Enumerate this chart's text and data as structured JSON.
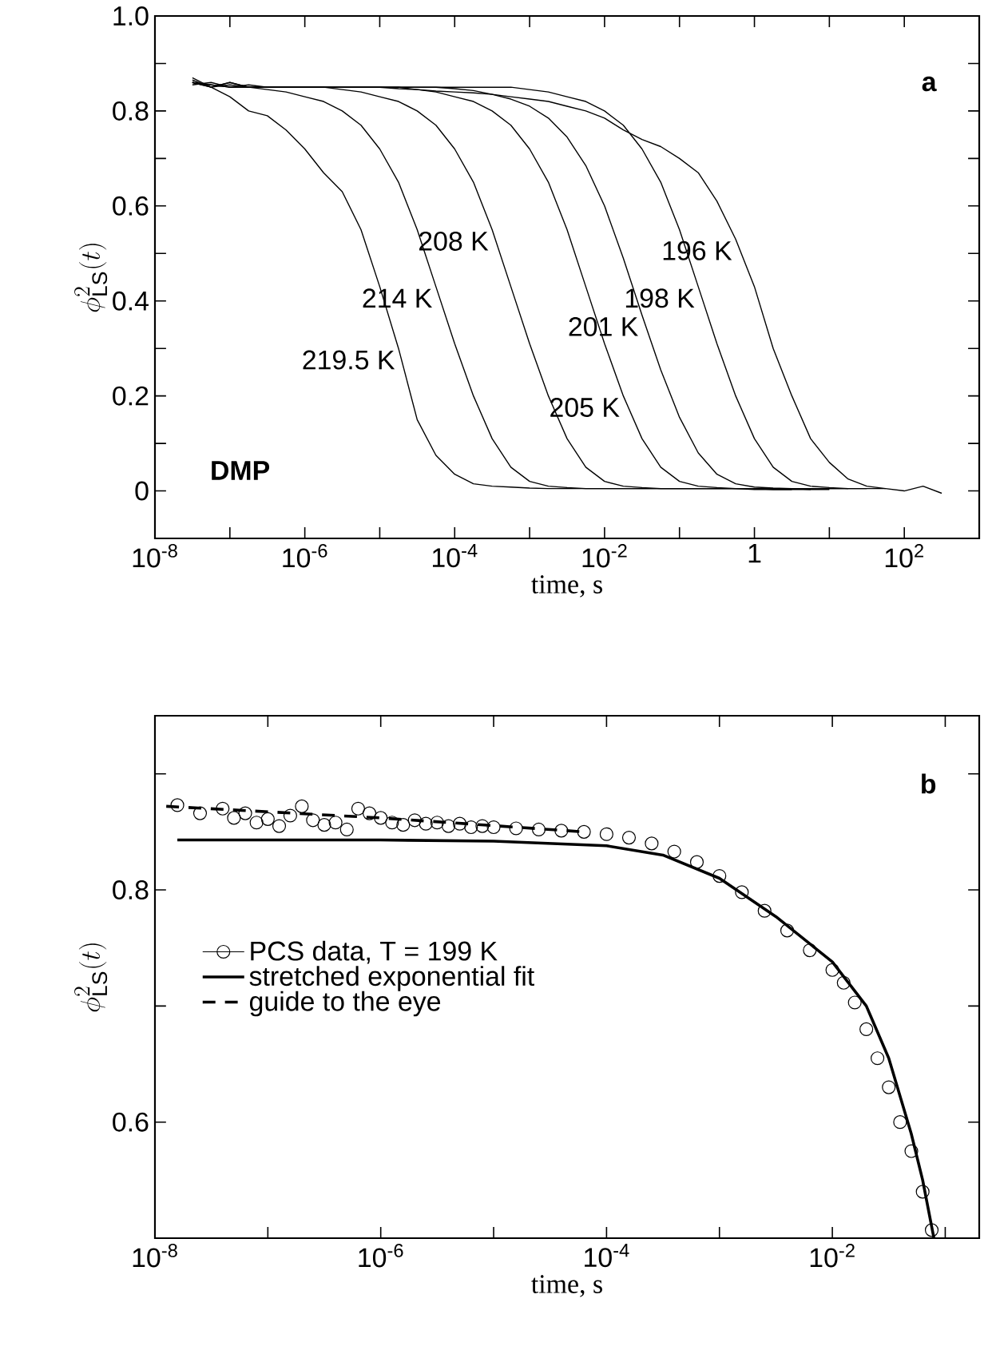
{
  "chart_data": [
    {
      "type": "line",
      "xlabel": "time,  s",
      "ylabel": "\\phi^{2}_{\\mathrm{LS}}(t)",
      "annotations": [
        "a",
        "DMP"
      ],
      "log": "x",
      "xlim": [
        1e-08,
        1000
      ],
      "ylim": [
        -0.1,
        1.0
      ],
      "xticks": [
        {
          "value": 1e-08,
          "label": "10$^{-8}$"
        },
        {
          "value": 1e-07,
          "label": null
        },
        {
          "value": 1e-06,
          "label": "10$^{-6}$"
        },
        {
          "value": 1e-05,
          "label": null
        },
        {
          "value": 0.0001,
          "label": "10$^{-4}$"
        },
        {
          "value": 0.001,
          "label": null
        },
        {
          "value": 0.01,
          "label": "10$^{-2}$"
        },
        {
          "value": 0.1,
          "label": null
        },
        1,
        {
          "value": 10,
          "label": null
        },
        {
          "value": 100,
          "label": "10$^{2}$"
        }
      ],
      "yticks": [
        0,
        {
          "value": 0.1,
          "label": null
        },
        0.2,
        {
          "value": 0.3,
          "label": null
        },
        0.4,
        {
          "value": 0.5,
          "label": null
        },
        0.6,
        {
          "value": 0.7,
          "label": null
        },
        0.8,
        {
          "value": 0.9,
          "label": null
        },
        {
          "value": 1.0,
          "label": "1.0"
        }
      ],
      "x": [
        3.16e-08,
        5.62e-08,
        1e-07,
        1.78e-07,
        3.16e-07,
        5.62e-07,
        1e-06,
        1.78e-06,
        3.16e-06,
        5.62e-06,
        1e-05,
        1.78e-05,
        3.16e-05,
        5.62e-05,
        0.0001,
        0.000178,
        0.000316,
        0.000562,
        0.001,
        0.00178,
        0.00316,
        0.00562,
        0.01,
        0.0178,
        0.0316,
        0.0562,
        0.1,
        0.178,
        0.316,
        0.562,
        1,
        1.78,
        3.16,
        5.62,
        10,
        17.8,
        31.6,
        56.2,
        100,
        178,
        316
      ],
      "series": [
        {
          "name": "219.5 K",
          "color": "#000000",
          "values": [
            0.86,
            0.85,
            0.83,
            0.8,
            0.79,
            0.76,
            0.72,
            0.67,
            0.63,
            0.55,
            0.43,
            0.3,
            0.15,
            0.075,
            0.035,
            0.015,
            0.01,
            0.008,
            0.006,
            0.005,
            0.005,
            0.005,
            0.005,
            0.005,
            0.005,
            0.005,
            0.005,
            0.005,
            0.005,
            0.005,
            0.003,
            0.003,
            0.003,
            null,
            null,
            null,
            null,
            null,
            null,
            null,
            null
          ]
        },
        {
          "name": "214 K",
          "color": "#000000",
          "values": [
            0.86,
            0.85,
            0.855,
            0.85,
            0.845,
            0.84,
            0.83,
            0.82,
            0.8,
            0.77,
            0.72,
            0.65,
            0.55,
            0.43,
            0.31,
            0.2,
            0.11,
            0.05,
            0.02,
            0.01,
            0.007,
            0.005,
            0.005,
            0.005,
            0.005,
            0.005,
            0.005,
            0.005,
            0.005,
            0.005,
            0.005,
            0.003,
            0.003,
            0.003,
            null,
            null,
            null,
            null,
            null,
            null,
            null
          ]
        },
        {
          "name": "208 K",
          "color": "#000000",
          "values": [
            0.87,
            0.85,
            0.86,
            0.85,
            0.85,
            0.85,
            0.85,
            0.85,
            0.845,
            0.84,
            0.83,
            0.82,
            0.8,
            0.77,
            0.72,
            0.65,
            0.55,
            0.43,
            0.31,
            0.2,
            0.11,
            0.05,
            0.02,
            0.01,
            0.007,
            0.005,
            0.005,
            0.005,
            0.005,
            0.005,
            0.005,
            0.005,
            0.005,
            0.003,
            0.003,
            null,
            null,
            null,
            null,
            null,
            null
          ]
        },
        {
          "name": "205 K",
          "color": "#000000",
          "values": [
            0.86,
            0.855,
            0.85,
            0.855,
            0.85,
            0.85,
            0.85,
            0.85,
            0.85,
            0.85,
            0.85,
            0.85,
            0.845,
            0.84,
            0.83,
            0.82,
            0.8,
            0.77,
            0.72,
            0.65,
            0.55,
            0.43,
            0.31,
            0.2,
            0.11,
            0.05,
            0.02,
            0.01,
            0.007,
            0.005,
            0.005,
            0.005,
            0.005,
            0.005,
            0.005,
            0.005,
            null,
            null,
            null,
            null,
            null
          ]
        },
        {
          "name": "201 K",
          "color": "#000000",
          "values": [
            0.865,
            0.85,
            0.86,
            0.85,
            0.85,
            0.85,
            0.85,
            0.85,
            0.85,
            0.85,
            0.85,
            0.85,
            0.85,
            0.85,
            0.847,
            0.843,
            0.835,
            0.825,
            0.81,
            0.785,
            0.745,
            0.685,
            0.6,
            0.49,
            0.37,
            0.255,
            0.155,
            0.08,
            0.035,
            0.015,
            0.008,
            0.006,
            0.005,
            0.005,
            0.005,
            0.005,
            0.005,
            null,
            null,
            null,
            null
          ]
        },
        {
          "name": "198 K",
          "color": "#000000",
          "values": [
            0.855,
            0.86,
            0.85,
            0.85,
            0.85,
            0.85,
            0.85,
            0.85,
            0.85,
            0.85,
            0.85,
            0.85,
            0.85,
            0.85,
            0.85,
            0.85,
            0.85,
            0.85,
            0.845,
            0.84,
            0.83,
            0.82,
            0.8,
            0.77,
            0.72,
            0.65,
            0.55,
            0.43,
            0.31,
            0.2,
            0.11,
            0.05,
            0.02,
            0.01,
            0.007,
            0.005,
            0.005,
            0.005,
            null,
            null,
            null
          ]
        },
        {
          "name": "196 K",
          "color": "#000000",
          "values": [
            0.86,
            0.855,
            0.85,
            0.85,
            0.85,
            0.85,
            0.85,
            0.85,
            0.85,
            0.85,
            0.85,
            0.847,
            0.845,
            0.842,
            0.84,
            0.838,
            0.835,
            0.83,
            0.825,
            0.82,
            0.81,
            0.8,
            0.785,
            0.76,
            0.74,
            0.725,
            0.7,
            0.67,
            0.61,
            0.53,
            0.43,
            0.3,
            0.2,
            0.11,
            0.06,
            0.025,
            0.01,
            0.005,
            0.0,
            0.01,
            -0.005
          ]
        }
      ]
    },
    {
      "type": "line",
      "xlabel": "time,  s",
      "ylabel": "\\phi^{2}_{\\mathrm{LS}}(t)",
      "annotations": [
        "b"
      ],
      "log": "x",
      "xlim": [
        1e-08,
        0.2
      ],
      "ylim": [
        0.5,
        0.95
      ],
      "legend": "left",
      "xticks": [
        {
          "value": 1e-08,
          "label": "10$^{-8}$"
        },
        {
          "value": 1e-07,
          "label": null
        },
        {
          "value": 1e-06,
          "label": "10$^{-6}$"
        },
        {
          "value": 1e-05,
          "label": null
        },
        {
          "value": 0.0001,
          "label": "10$^{-4}$"
        },
        {
          "value": 0.001,
          "label": null
        },
        {
          "value": 0.01,
          "label": "10$^{-2}$"
        },
        {
          "value": 0.1,
          "label": null
        }
      ],
      "yticks": [
        0.6,
        {
          "value": 0.7,
          "label": null
        },
        0.8,
        {
          "value": 0.9,
          "label": null
        }
      ],
      "series": [
        {
          "name": "PCS data, T = 199 K",
          "type": "scatter",
          "marker": "circle",
          "color": "#000000",
          "x": [
            1.58e-08,
            2.51e-08,
            3.98e-08,
            5.01e-08,
            6.31e-08,
            7.94e-08,
            1e-07,
            1.26e-07,
            1.58e-07,
            2e-07,
            2.51e-07,
            3.16e-07,
            3.98e-07,
            5.01e-07,
            6.31e-07,
            7.94e-07,
            1e-06,
            1.26e-06,
            1.58e-06,
            2e-06,
            2.51e-06,
            3.16e-06,
            3.98e-06,
            5.01e-06,
            6.31e-06,
            7.94e-06,
            1e-05,
            1.58e-05,
            2.51e-05,
            3.98e-05,
            6.31e-05,
            0.0001,
            0.000158,
            0.000251,
            0.000398,
            0.000631,
            0.001,
            0.00158,
            0.00251,
            0.00398,
            0.00631,
            0.01,
            0.0126,
            0.0158,
            0.02,
            0.0251,
            0.0316,
            0.0398,
            0.0501,
            0.0631,
            0.0759
          ],
          "values": [
            0.873,
            0.866,
            0.87,
            0.862,
            0.866,
            0.858,
            0.861,
            0.855,
            0.864,
            0.872,
            0.86,
            0.856,
            0.858,
            0.852,
            0.87,
            0.866,
            0.862,
            0.858,
            0.856,
            0.86,
            0.857,
            0.858,
            0.855,
            0.857,
            0.854,
            0.855,
            0.854,
            0.853,
            0.852,
            0.851,
            0.85,
            0.848,
            0.845,
            0.84,
            0.833,
            0.824,
            0.812,
            0.798,
            0.782,
            0.765,
            0.748,
            0.731,
            0.72,
            0.703,
            0.68,
            0.655,
            0.63,
            0.6,
            0.575,
            0.54,
            0.507
          ]
        },
        {
          "name": "stretched exponential fit",
          "color": "#000000",
          "x": [
            1.58e-08,
            1e-06,
            1e-05,
            0.0001,
            0.000316,
            0.001,
            0.00316,
            0.01,
            0.02,
            0.0316,
            0.05,
            0.0631,
            0.0794
          ],
          "values": [
            0.843,
            0.843,
            0.842,
            0.838,
            0.83,
            0.81,
            0.777,
            0.738,
            0.7,
            0.655,
            0.59,
            0.55,
            0.5
          ]
        },
        {
          "name": "guide to the eye",
          "color": "#000000",
          "line_style": "dashed",
          "x": [
            1.26e-08,
            1e-06,
            6.31e-05
          ],
          "values": [
            0.872,
            0.862,
            0.85
          ]
        }
      ]
    }
  ]
}
